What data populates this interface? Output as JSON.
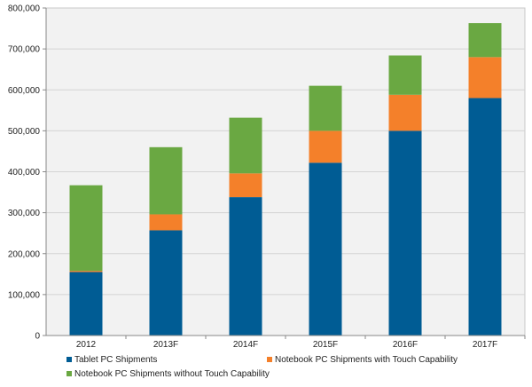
{
  "chart_data": {
    "type": "bar",
    "stacked": true,
    "title": "",
    "xlabel": "",
    "ylabel": "",
    "categories": [
      "2012",
      "2013F",
      "2014F",
      "2015F",
      "2016F",
      "2017F"
    ],
    "ylim": [
      0,
      800000
    ],
    "yticks": [
      0,
      100000,
      200000,
      300000,
      400000,
      500000,
      600000,
      700000,
      800000
    ],
    "ytick_labels": [
      "0",
      "100,000",
      "200,000",
      "300,000",
      "400,000",
      "500,000",
      "600,000",
      "700,000",
      "800,000"
    ],
    "grid": true,
    "legend_position": "bottom",
    "series": [
      {
        "name": "Tablet PC Shipments",
        "color": "#005c94",
        "values": [
          155000,
          257000,
          338000,
          422000,
          500000,
          580000
        ]
      },
      {
        "name": "Notebook PC Shipments with Touch Capability",
        "color": "#f4802a",
        "values": [
          3000,
          39000,
          58000,
          78000,
          88000,
          100000
        ]
      },
      {
        "name": "Notebook PC Shipments without Touch Capability",
        "color": "#6aa842",
        "values": [
          209000,
          164000,
          136000,
          110000,
          96000,
          83000
        ]
      }
    ]
  }
}
